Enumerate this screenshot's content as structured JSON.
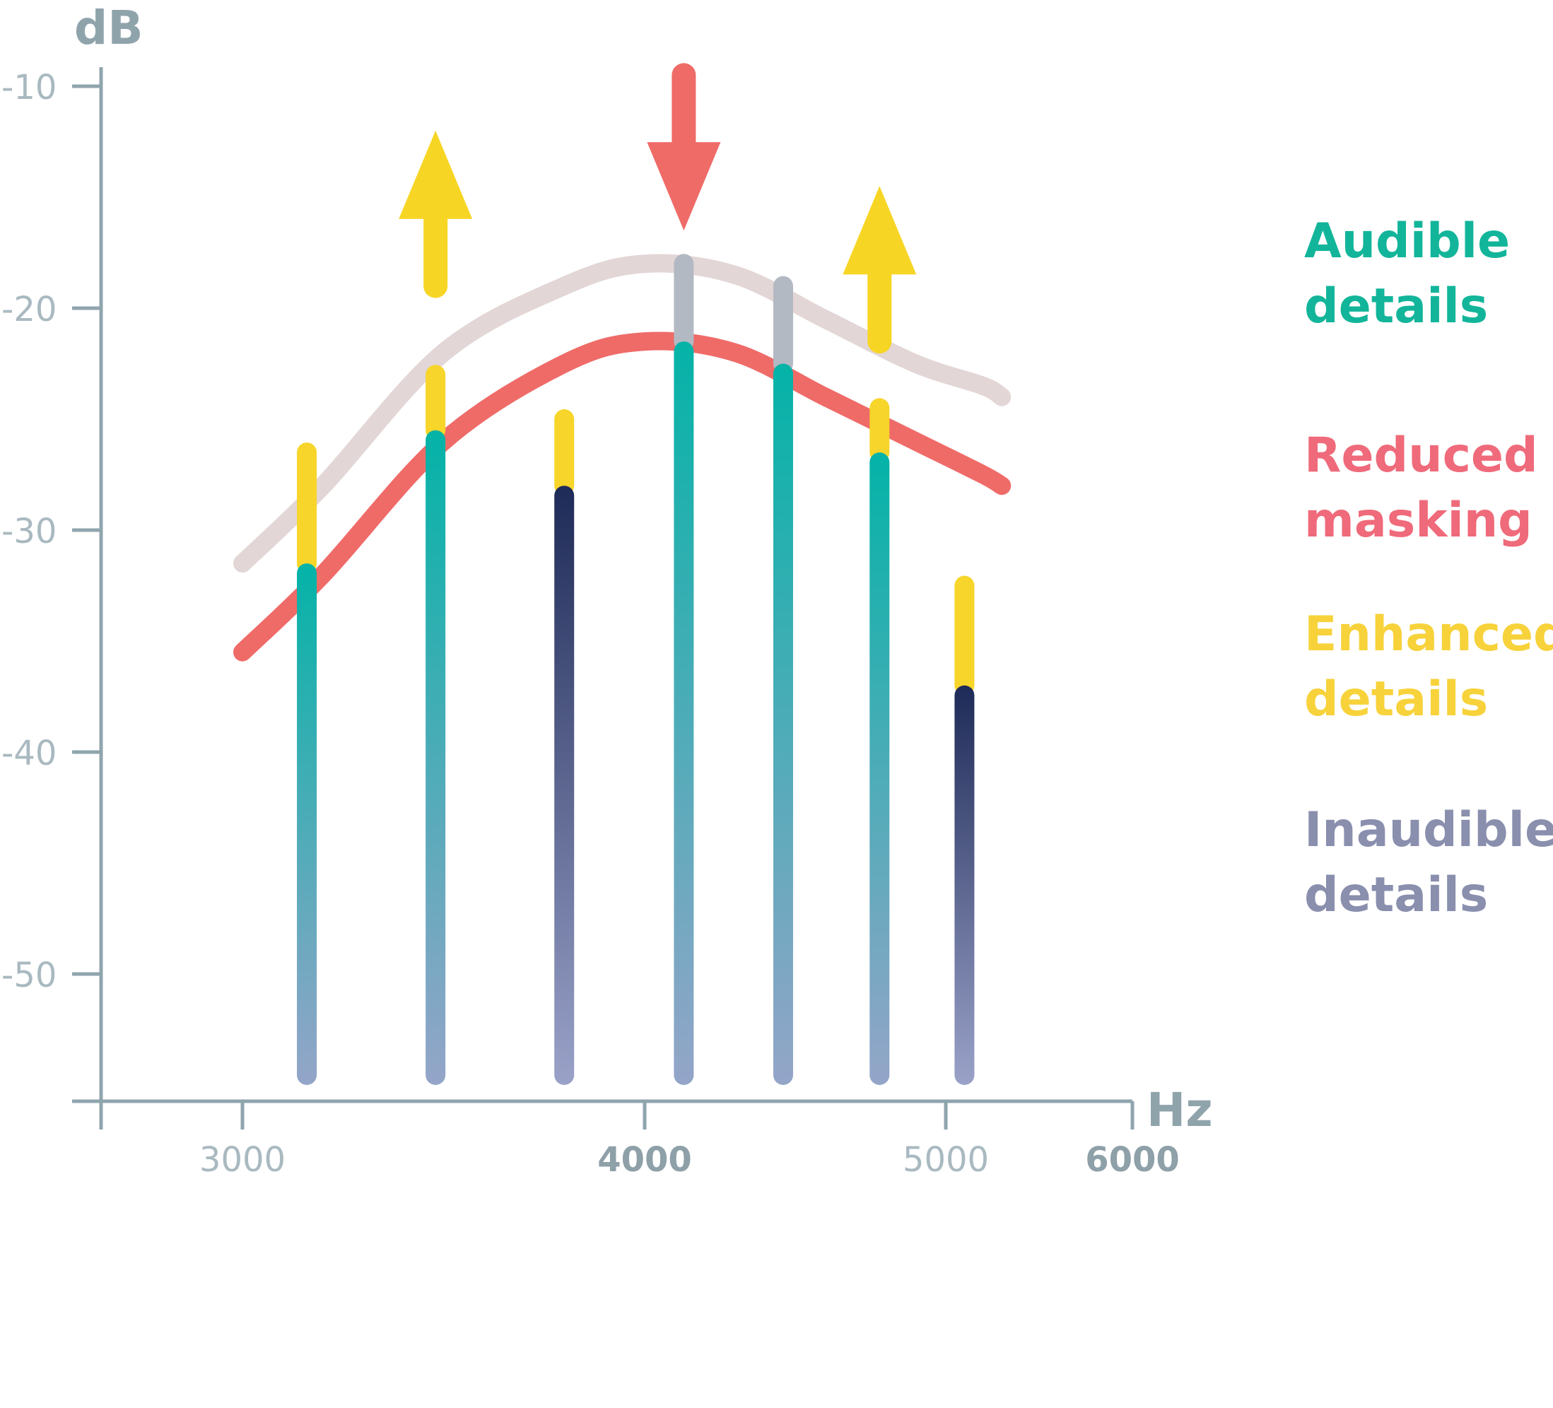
{
  "chart_data": {
    "type": "bar",
    "title": "",
    "ylabel": "dB",
    "xlabel": "Hz",
    "ylim": [
      -55,
      -10
    ],
    "x_ticks": [
      {
        "value": 3000,
        "label": "3000",
        "strong": false
      },
      {
        "value": 4000,
        "label": "4000",
        "strong": true
      },
      {
        "value": 5000,
        "label": "5000",
        "strong": false
      },
      {
        "value": 6000,
        "label": "6000",
        "strong": true
      }
    ],
    "y_ticks": [
      {
        "value": -10,
        "label": "-10"
      },
      {
        "value": -20,
        "label": "-20"
      },
      {
        "value": -30,
        "label": "-30"
      },
      {
        "value": -40,
        "label": "-40"
      },
      {
        "value": -50,
        "label": "-50"
      }
    ],
    "bars": [
      {
        "x": 3160,
        "base": -55,
        "value": -31.5,
        "enhanced_top": -26.5,
        "category": "audible"
      },
      {
        "x": 3480,
        "base": -55,
        "value": -25.5,
        "enhanced_top": -23,
        "category": "audible"
      },
      {
        "x": 3800,
        "base": -55,
        "value": -28,
        "enhanced_top": -25,
        "category": "inaudible"
      },
      {
        "x": 4130,
        "base": -55,
        "value": -21.5,
        "reduced_top": -18,
        "category": "audible"
      },
      {
        "x": 4460,
        "base": -55,
        "value": -22.5,
        "reduced_top": -19,
        "category": "audible"
      },
      {
        "x": 4780,
        "base": -55,
        "value": -26.5,
        "enhanced_top": -24.5,
        "category": "audible"
      },
      {
        "x": 5100,
        "base": -55,
        "value": -37,
        "enhanced_top": -32.5,
        "category": "inaudible"
      }
    ],
    "curves": [
      {
        "role": "masking-threshold-original",
        "points": [
          [
            3000,
            -31.5
          ],
          [
            3200,
            -28
          ],
          [
            3500,
            -22
          ],
          [
            3800,
            -19
          ],
          [
            4000,
            -18
          ],
          [
            4300,
            -18.5
          ],
          [
            4600,
            -20.5
          ],
          [
            4900,
            -22.5
          ],
          [
            5200,
            -23.5
          ],
          [
            5300,
            -24
          ]
        ]
      },
      {
        "role": "masking-threshold-reduced",
        "points": [
          [
            3000,
            -35.5
          ],
          [
            3200,
            -32
          ],
          [
            3500,
            -26
          ],
          [
            3800,
            -22.5
          ],
          [
            4000,
            -21.5
          ],
          [
            4300,
            -22
          ],
          [
            4600,
            -24
          ],
          [
            4900,
            -26
          ],
          [
            5200,
            -27.5
          ],
          [
            5300,
            -28
          ]
        ]
      }
    ],
    "arrows": [
      {
        "kind": "enhanced",
        "direction": "up",
        "x": 3480,
        "from": -19,
        "to": -12
      },
      {
        "kind": "reduced",
        "direction": "down",
        "x": 4130,
        "from": -9.5,
        "to": -16.5
      },
      {
        "kind": "enhanced",
        "direction": "up",
        "x": 4780,
        "from": -21.5,
        "to": -14.5
      }
    ],
    "legend": [
      {
        "label": "Audible\ndetails",
        "color": "#12b59a"
      },
      {
        "label": "Reduced\nmasking",
        "color": "#ef6a7a"
      },
      {
        "label": "Enhanced\ndetails",
        "color": "#f7d23a"
      },
      {
        "label": "Inaudible\ndetails",
        "color": "#8a8fae"
      }
    ]
  },
  "colors": {
    "axis": "#8fa5ae",
    "audible_top": "#04b3a7",
    "audible_bottom": "#94a5c8",
    "inaudible_top": "#1e2a57",
    "inaudible_bottom": "#9aa2c8",
    "enhanced": "#f7d52a",
    "reduced_gray": "#b3b9c2",
    "curve_original": "#e3d6d6",
    "curve_reduced": "#ef6b68",
    "arrow_enhanced": "#f7d524",
    "arrow_reduced": "#ef6b68"
  }
}
